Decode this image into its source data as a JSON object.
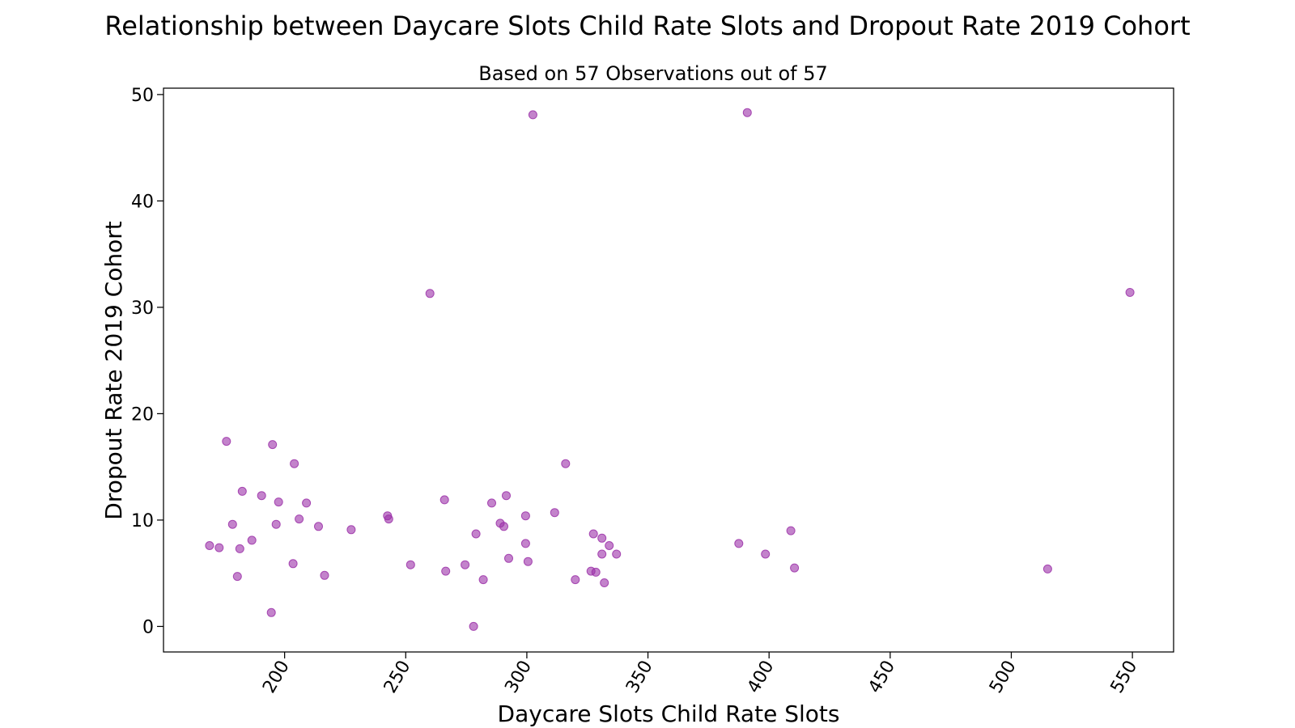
{
  "chart_data": {
    "type": "scatter",
    "title": "Relationship between Daycare Slots Child Rate Slots and Dropout Rate 2019 Cohort",
    "subtitle": "Based on 57 Observations out of 57",
    "xlabel": "Daycare Slots Child Rate Slots",
    "ylabel": "Dropout Rate 2019 Cohort",
    "xlim": [
      150,
      567
    ],
    "ylim": [
      -2.4,
      50.6
    ],
    "xticks": [
      200,
      250,
      300,
      350,
      400,
      450,
      500,
      550
    ],
    "yticks": [
      0,
      10,
      20,
      30,
      40,
      50
    ],
    "grid": false,
    "marker_color": "#9B30A8",
    "marker_opacity": 0.6,
    "x": [
      169,
      173,
      176,
      178.5,
      180.5,
      181.5,
      182.5,
      186.5,
      190.5,
      194.5,
      195,
      196.5,
      197.5,
      203.5,
      204,
      206,
      209,
      214,
      216.5,
      227.5,
      242.5,
      243,
      252,
      260,
      266,
      266.5,
      274.5,
      278,
      279,
      282,
      285.5,
      289,
      290.5,
      291.5,
      292.5,
      299.5,
      299.5,
      300.5,
      302.5,
      311.5,
      316,
      320,
      326.5,
      327.5,
      328.5,
      331,
      331,
      332,
      334,
      337,
      387.5,
      391,
      398.5,
      409,
      410.5,
      515,
      549
    ],
    "y": [
      7.6,
      7.4,
      17.4,
      9.6,
      4.7,
      7.3,
      12.7,
      8.1,
      12.3,
      1.3,
      17.1,
      9.6,
      11.7,
      5.9,
      15.3,
      10.1,
      11.6,
      9.4,
      4.8,
      9.1,
      10.4,
      10.1,
      5.8,
      31.3,
      11.9,
      5.2,
      5.8,
      0,
      8.7,
      4.4,
      11.6,
      9.7,
      9.4,
      12.3,
      6.4,
      7.8,
      10.4,
      6.1,
      48.1,
      10.7,
      15.3,
      4.4,
      5.2,
      8.7,
      5.1,
      6.8,
      8.3,
      4.1,
      7.6,
      6.8,
      7.8,
      48.3,
      6.8,
      9.0,
      5.5,
      5.4,
      31.4
    ]
  }
}
